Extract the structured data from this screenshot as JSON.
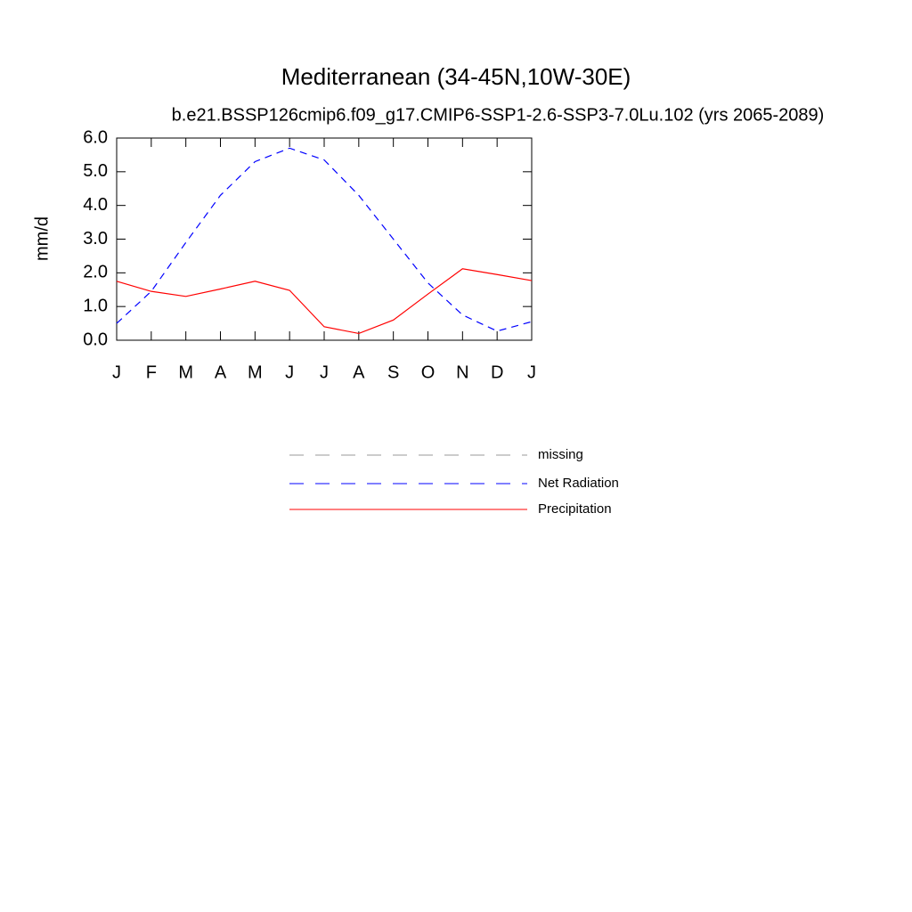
{
  "chart_data": {
    "type": "line",
    "title": "Mediterranean (34-45N,10W-30E)",
    "subtitle": "b.e21.BSSP126cmip6.f09_g17.CMIP6-SSP1-2.6-SSP3-7.0Lu.102 (yrs 2065-2089)",
    "y_label": "mm/d",
    "categories": [
      "J",
      "F",
      "M",
      "A",
      "M",
      "J",
      "J",
      "A",
      "S",
      "O",
      "N",
      "D",
      "J"
    ],
    "series": [
      {
        "name": "missing",
        "color": "#999999",
        "dash": true,
        "values": [
          null,
          null,
          null,
          null,
          null,
          null,
          null,
          null,
          null,
          null,
          null,
          null,
          null
        ]
      },
      {
        "name": "Net Radiation",
        "color": "#0000ff",
        "dash": true,
        "values": [
          0.5,
          1.45,
          2.9,
          4.3,
          5.3,
          5.7,
          5.35,
          4.3,
          3.0,
          1.7,
          0.75,
          0.27,
          0.55
        ]
      },
      {
        "name": "Precipitation",
        "color": "#ff0000",
        "dash": false,
        "values": [
          1.75,
          1.45,
          1.3,
          1.52,
          1.75,
          1.48,
          0.4,
          0.2,
          0.6,
          1.37,
          2.12,
          1.95,
          1.77
        ]
      }
    ],
    "ylim": [
      0,
      6
    ],
    "yticks": [
      {
        "value": 0,
        "label": "0.0"
      },
      {
        "value": 1,
        "label": "1.0"
      },
      {
        "value": 2,
        "label": "2.0"
      },
      {
        "value": 3,
        "label": "3.0"
      },
      {
        "value": 4,
        "label": "4.0"
      },
      {
        "value": 5,
        "label": "5.0"
      },
      {
        "value": 6,
        "label": "6.0"
      }
    ]
  }
}
